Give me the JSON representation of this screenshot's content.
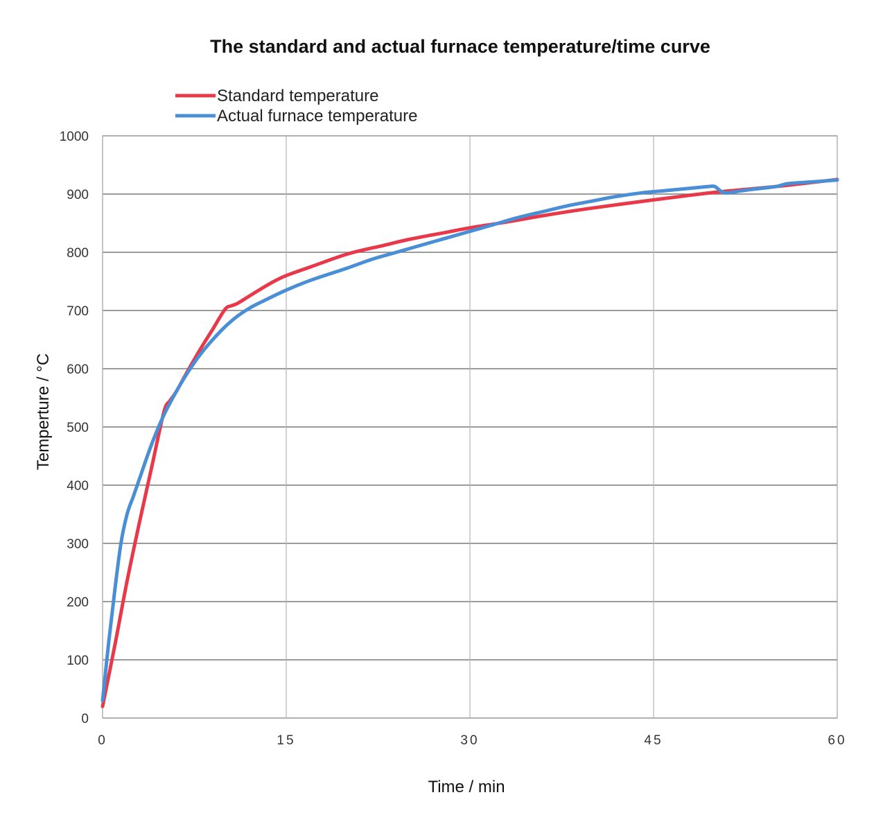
{
  "chart_data": {
    "type": "line",
    "title": "The standard and actual furnace temperature/time curve",
    "xlabel": "Time / min",
    "ylabel": "Temperture / °C",
    "xlim": [
      0,
      60
    ],
    "ylim": [
      0,
      1000
    ],
    "x_ticks": [
      "0",
      "15",
      "30",
      "45",
      "60"
    ],
    "y_ticks": [
      "0",
      "100",
      "200",
      "300",
      "400",
      "500",
      "600",
      "700",
      "800",
      "900",
      "1000"
    ],
    "grid": true,
    "legend_position": "top-left",
    "series": [
      {
        "name": "Standard temperature",
        "color": "#e8394a",
        "x": [
          0,
          1,
          2,
          3,
          4,
          5,
          5.5,
          6,
          7,
          8,
          9,
          10,
          10.5,
          11,
          12,
          13,
          14,
          15,
          17,
          20,
          23,
          25,
          28,
          30,
          33,
          36,
          40,
          45,
          48,
          50,
          52,
          55,
          58,
          60
        ],
        "y": [
          20,
          125,
          235,
          335,
          430,
          525,
          545,
          560,
          598,
          634,
          668,
          702,
          708,
          712,
          725,
          738,
          750,
          760,
          775,
          797,
          812,
          822,
          834,
          842,
          852,
          863,
          876,
          890,
          898,
          903,
          907,
          913,
          920,
          925
        ]
      },
      {
        "name": "Actual furnace temperature",
        "color": "#4a8fd6",
        "x": [
          0,
          0.5,
          1,
          1.5,
          2,
          2.5,
          3,
          4,
          5,
          6,
          7,
          8,
          9,
          10,
          11,
          12,
          13,
          15,
          17,
          20,
          22,
          24,
          26,
          28,
          30,
          32,
          34,
          36,
          38,
          40,
          42,
          44,
          46,
          48,
          49,
          49.5,
          50,
          50.5,
          51,
          52,
          53,
          55,
          56,
          58,
          60
        ],
        "y": [
          30,
          130,
          220,
          300,
          350,
          380,
          410,
          470,
          520,
          560,
          595,
          625,
          650,
          672,
          690,
          704,
          715,
          735,
          752,
          773,
          788,
          800,
          812,
          824,
          836,
          848,
          860,
          870,
          880,
          888,
          896,
          902,
          906,
          910,
          912,
          913,
          913,
          905,
          902,
          905,
          908,
          913,
          918,
          921,
          924
        ]
      }
    ]
  }
}
